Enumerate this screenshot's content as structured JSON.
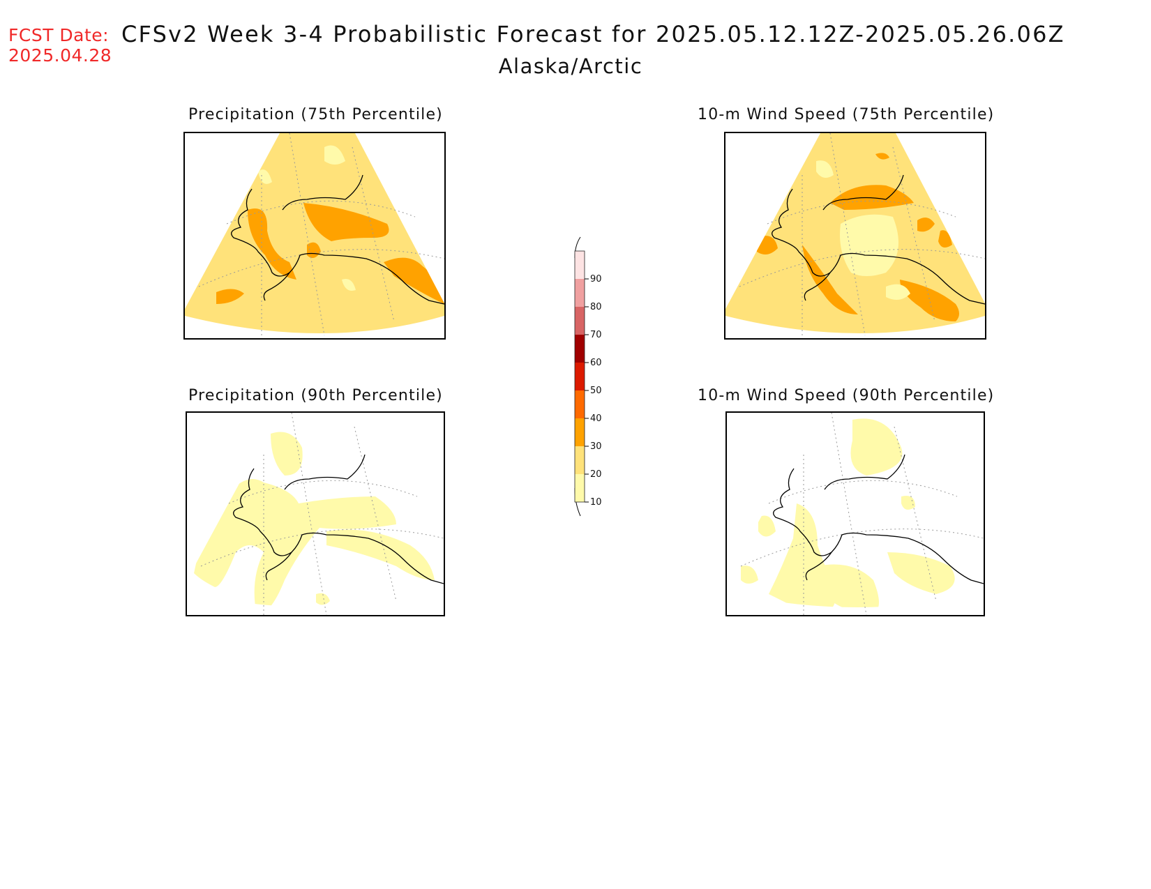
{
  "header": {
    "fcst_label": "FCST Date:",
    "fcst_date": "2025.04.28",
    "title": "CFSv2 Week 3-4 Probabilistic Forecast for 2025.05.12.12Z-2025.05.26.06Z",
    "region": "Alaska/Arctic"
  },
  "panels": [
    {
      "title": "Precipitation (75th Percentile)",
      "background_category": "20-30"
    },
    {
      "title": "10-m Wind Speed (75th Percentile)",
      "background_category": "20-30"
    },
    {
      "title": "Precipitation (90th Percentile)",
      "background_category": "<10"
    },
    {
      "title": "10-m Wind Speed (90th Percentile)",
      "background_category": "<10"
    }
  ],
  "colorbar": {
    "labels": [
      "90",
      "80",
      "70",
      "60",
      "50",
      "40",
      "30",
      "20",
      "10"
    ],
    "colors": [
      "#fde3e3",
      "#f0a0a0",
      "#d86464",
      "#a00000",
      "#dc1a00",
      "#ff6a00",
      "#ffa200",
      "#ffe27a",
      "#fffaaa"
    ]
  },
  "colors": {
    "fcst_text": "#f02828",
    "lightest": "#fffaaa",
    "light": "#ffe27a",
    "orange": "#ffa200"
  }
}
